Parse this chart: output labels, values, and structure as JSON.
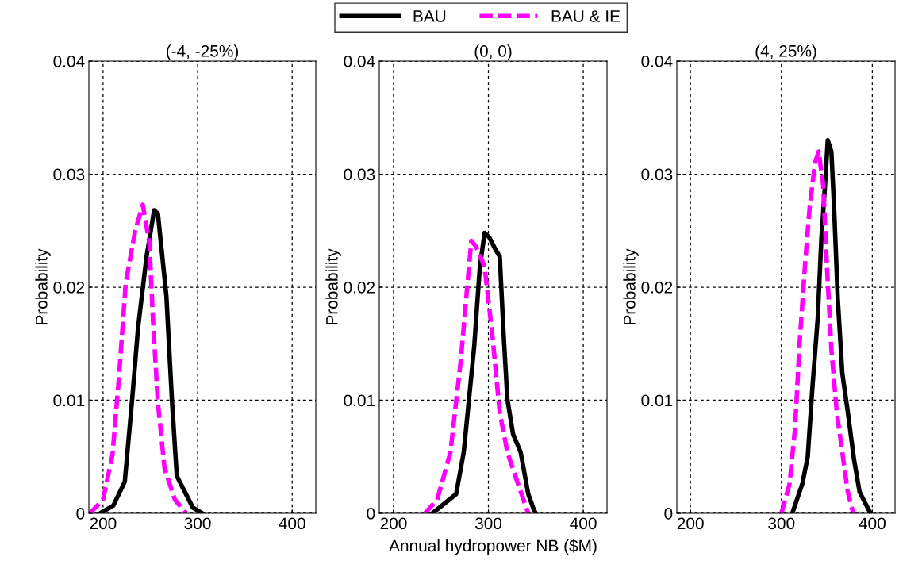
{
  "chart_data": [
    {
      "type": "line",
      "title": "(-4, -25%)",
      "ylabel": "Probability",
      "xlim": [
        185,
        425
      ],
      "ylim": [
        0,
        0.04
      ],
      "xticks": [
        200,
        300,
        400
      ],
      "yticks": [
        0,
        0.01,
        0.02,
        0.03,
        0.04
      ],
      "grid": true,
      "legend": "top",
      "series": [
        {
          "name": "BAU",
          "color": "#000000",
          "line_style": "solid",
          "x": [
            197,
            211,
            223,
            231,
            237,
            246,
            254,
            258,
            267,
            273,
            278,
            295,
            305
          ],
          "values": [
            0,
            0.0007,
            0.0028,
            0.0103,
            0.0164,
            0.0227,
            0.0268,
            0.0265,
            0.0192,
            0.0098,
            0.0033,
            0.0005,
            0
          ]
        },
        {
          "name": "BAU & IE",
          "color": "#ff00ff",
          "line_style": "dashed",
          "x": [
            186,
            200,
            210,
            217,
            224,
            234,
            242,
            249,
            253,
            258,
            265,
            276,
            288
          ],
          "values": [
            0,
            0.0012,
            0.0052,
            0.0122,
            0.0204,
            0.025,
            0.0273,
            0.0239,
            0.0168,
            0.0098,
            0.004,
            0.0012,
            0
          ]
        }
      ]
    },
    {
      "type": "line",
      "title": "(0, 0)",
      "ylabel": "Probability",
      "xlabel": "Annual hydropower NB ($M)",
      "xlim": [
        185,
        425
      ],
      "ylim": [
        0,
        0.04
      ],
      "xticks": [
        200,
        300,
        400
      ],
      "yticks": [
        0,
        0.01,
        0.02,
        0.03,
        0.04
      ],
      "grid": true,
      "series": [
        {
          "color": "#000000",
          "line_style": "solid",
          "x": [
            241,
            266,
            274,
            285,
            291,
            296,
            301,
            307,
            312,
            316,
            320,
            326,
            334,
            342,
            348,
            350
          ],
          "values": [
            0,
            0.0017,
            0.0054,
            0.0147,
            0.0218,
            0.0248,
            0.0244,
            0.0234,
            0.0227,
            0.0159,
            0.0101,
            0.007,
            0.0054,
            0.0017,
            0.0003,
            0
          ]
        },
        {
          "color": "#ff00ff",
          "line_style": "dashed",
          "x": [
            233,
            246,
            260,
            271,
            277,
            282,
            287,
            296,
            304,
            312,
            320,
            332,
            342
          ],
          "values": [
            0,
            0.0012,
            0.0054,
            0.0136,
            0.0194,
            0.0241,
            0.0236,
            0.0218,
            0.0159,
            0.0089,
            0.0054,
            0.0024,
            0
          ]
        }
      ]
    },
    {
      "type": "line",
      "title": "(4, 25%)",
      "ylabel": "Probability",
      "xlim": [
        185,
        425
      ],
      "ylim": [
        0,
        0.04
      ],
      "xticks": [
        200,
        300,
        400
      ],
      "yticks": [
        0,
        0.01,
        0.02,
        0.03,
        0.04
      ],
      "grid": true,
      "series": [
        {
          "color": "#000000",
          "line_style": "solid",
          "x": [
            312,
            323,
            329,
            334,
            340,
            344,
            348,
            351,
            355,
            358,
            362,
            367,
            373,
            380,
            386,
            398
          ],
          "values": [
            0,
            0.0026,
            0.005,
            0.011,
            0.0173,
            0.0243,
            0.029,
            0.033,
            0.032,
            0.027,
            0.019,
            0.0124,
            0.009,
            0.0047,
            0.0019,
            0
          ]
        },
        {
          "color": "#ff00ff",
          "line_style": "dashed",
          "x": [
            300,
            309,
            315,
            320,
            326,
            331,
            337,
            341,
            346,
            350,
            355,
            361,
            367,
            373,
            379
          ],
          "values": [
            0,
            0.0026,
            0.0075,
            0.015,
            0.022,
            0.027,
            0.031,
            0.032,
            0.029,
            0.022,
            0.0145,
            0.0089,
            0.0054,
            0.0019,
            0
          ]
        }
      ]
    }
  ]
}
